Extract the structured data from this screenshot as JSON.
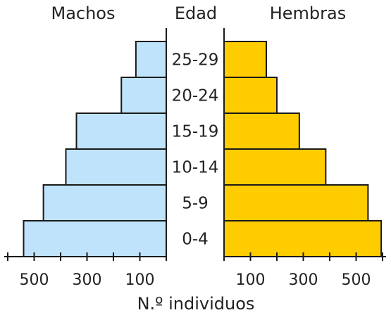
{
  "chart_data": {
    "type": "bar",
    "orientation": "horizontal-population-pyramid",
    "category_header": "Edad",
    "categories": [
      "0-4",
      "5-9",
      "10-14",
      "15-19",
      "20-24",
      "25-29"
    ],
    "series": [
      {
        "name": "Machos",
        "side": "left",
        "values": [
          540,
          465,
          380,
          340,
          170,
          115
        ]
      },
      {
        "name": "Hembras",
        "side": "right",
        "values": [
          595,
          545,
          385,
          285,
          200,
          160
        ]
      }
    ],
    "left_ticks": [
      500,
      300,
      100
    ],
    "right_ticks": [
      100,
      300,
      500
    ],
    "xlabel": "N.º individuos",
    "xlim": [
      0,
      600
    ],
    "colors": {
      "Machos": "#bfe3fb",
      "Hembras": "#ffcc00",
      "outline": "#1a1a1a"
    }
  }
}
